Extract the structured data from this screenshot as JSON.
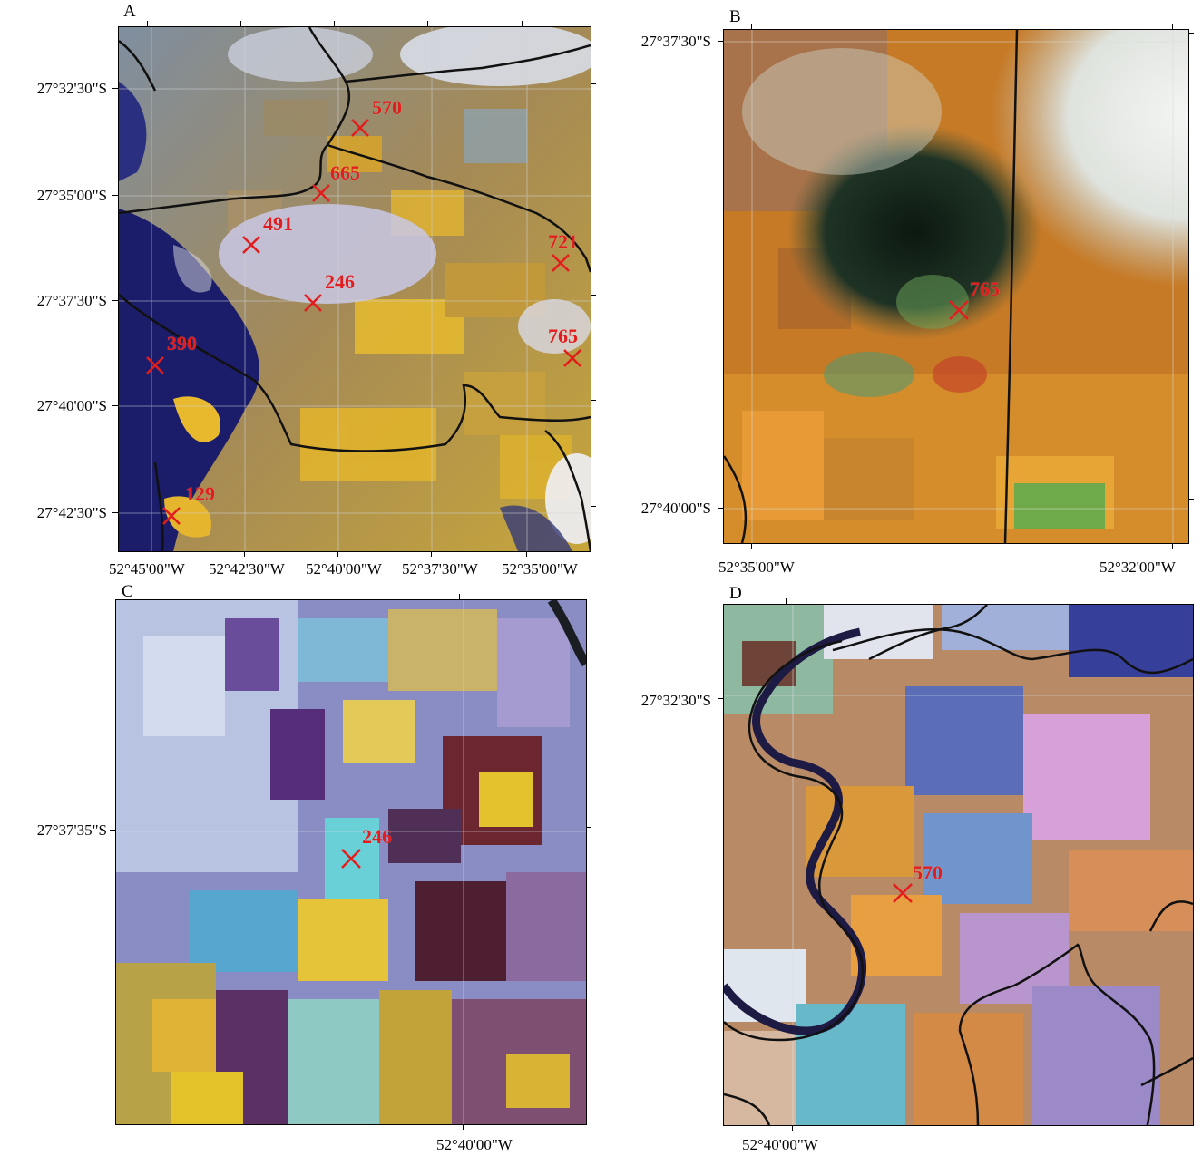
{
  "marker_color": "#e21d1d",
  "boundary_color": "#111111",
  "panels": {
    "A": {
      "letter": "A",
      "lat_labels": [
        "27°32'30\"S",
        "27°35'00\"S",
        "27°37'30\"S",
        "27°40'00\"S",
        "27°42'30\"S"
      ],
      "lon_labels": [
        "52°45'00\"W",
        "52°42'30\"W",
        "52°40'00\"W",
        "52°37'30\"W",
        "52°35'00\"W"
      ],
      "markers": [
        {
          "label": "570"
        },
        {
          "label": "665"
        },
        {
          "label": "491"
        },
        {
          "label": "721"
        },
        {
          "label": "246"
        },
        {
          "label": "390"
        },
        {
          "label": "765"
        },
        {
          "label": "129"
        }
      ]
    },
    "B": {
      "letter": "B",
      "lat_labels": [
        "27°37'30\"S",
        "27°40'00\"S"
      ],
      "lon_labels": [
        "52°35'00\"W",
        "52°32'00\"W"
      ],
      "markers": [
        {
          "label": "765"
        }
      ]
    },
    "C": {
      "letter": "C",
      "lat_labels": [
        "27°37'35\"S"
      ],
      "lon_labels": [
        "52°40'00\"W"
      ],
      "markers": [
        {
          "label": "246"
        }
      ]
    },
    "D": {
      "letter": "D",
      "lat_labels": [
        "27°32'30\"S"
      ],
      "lon_labels": [
        "52°40'00\"W"
      ],
      "markers": [
        {
          "label": "570"
        }
      ]
    }
  }
}
